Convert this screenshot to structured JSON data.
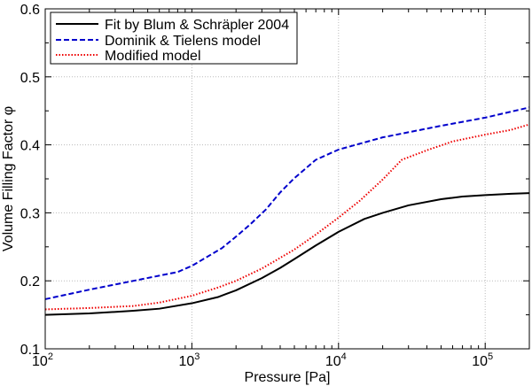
{
  "chart_data": {
    "type": "line",
    "title": "",
    "xlabel": "Pressure [Pa]",
    "ylabel": "Volume Filling Factor φ",
    "xscale": "log",
    "xlim": [
      100,
      200000
    ],
    "ylim": [
      0.1,
      0.6
    ],
    "grid": true,
    "legend_position": "top-left",
    "x_ticks": [
      {
        "value": 100,
        "base": "10",
        "exp": "2"
      },
      {
        "value": 1000,
        "base": "10",
        "exp": "3"
      },
      {
        "value": 10000,
        "base": "10",
        "exp": "4"
      },
      {
        "value": 100000,
        "base": "10",
        "exp": "5"
      }
    ],
    "y_ticks": [
      {
        "value": 0.1,
        "label": "0.1"
      },
      {
        "value": 0.2,
        "label": "0.2"
      },
      {
        "value": 0.3,
        "label": "0.3"
      },
      {
        "value": 0.4,
        "label": "0.4"
      },
      {
        "value": 0.5,
        "label": "0.5"
      },
      {
        "value": 0.6,
        "label": "0.6"
      }
    ],
    "series": [
      {
        "name": "Fit by Blum & Schräpler 2004",
        "color": "#000000",
        "dash": "solid",
        "x": [
          100,
          200,
          400,
          600,
          1000,
          1500,
          2000,
          3000,
          4000,
          5000,
          7000,
          10000,
          15000,
          20000,
          30000,
          50000,
          70000,
          100000,
          150000,
          200000
        ],
        "y": [
          0.15,
          0.152,
          0.156,
          0.159,
          0.167,
          0.176,
          0.186,
          0.204,
          0.219,
          0.232,
          0.252,
          0.272,
          0.291,
          0.3,
          0.311,
          0.32,
          0.324,
          0.326,
          0.328,
          0.329
        ]
      },
      {
        "name": "Dominik & Tielens model",
        "color": "#0000cc",
        "dash": "dashed",
        "x": [
          100,
          200,
          400,
          800,
          1000,
          1600,
          2000,
          2500,
          3200,
          4000,
          5000,
          7000,
          10000,
          20000,
          50000,
          100000,
          200000
        ],
        "y": [
          0.173,
          0.187,
          0.2,
          0.213,
          0.222,
          0.248,
          0.265,
          0.283,
          0.305,
          0.33,
          0.351,
          0.378,
          0.393,
          0.411,
          0.428,
          0.44,
          0.455
        ]
      },
      {
        "name": "Modified model",
        "color": "#ee0000",
        "dash": "dotted",
        "x": [
          100,
          200,
          400,
          600,
          1000,
          1500,
          2000,
          3000,
          5000,
          7000,
          10000,
          14000,
          20000,
          27000,
          40000,
          60000,
          100000,
          150000,
          200000
        ],
        "y": [
          0.158,
          0.16,
          0.163,
          0.168,
          0.178,
          0.19,
          0.2,
          0.218,
          0.246,
          0.268,
          0.293,
          0.318,
          0.349,
          0.378,
          0.392,
          0.405,
          0.415,
          0.422,
          0.43
        ]
      }
    ]
  }
}
